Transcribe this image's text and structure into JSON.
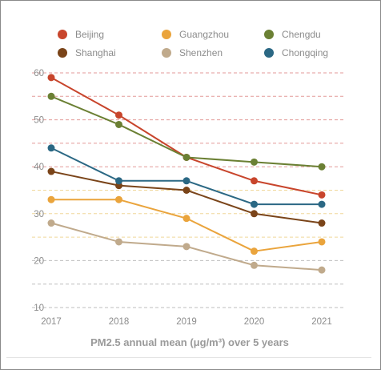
{
  "chart_data": {
    "type": "line",
    "title": "",
    "caption": "PM2.5 annual mean (μg/m³) over 5 years",
    "xlabel": "",
    "ylabel": "",
    "x": [
      "2017",
      "2018",
      "2019",
      "2020",
      "2021"
    ],
    "ylim": [
      10,
      60
    ],
    "yticks": [
      10,
      20,
      30,
      40,
      50,
      60
    ],
    "grid": "dashed horizontal lines every 5 units, coloured by band",
    "legend_position": "top",
    "series": [
      {
        "name": "Beijing",
        "color": "#c8452c",
        "values": [
          59,
          51,
          42,
          37,
          34
        ]
      },
      {
        "name": "Shanghai",
        "color": "#7a4419",
        "values": [
          39,
          36,
          35,
          30,
          28
        ]
      },
      {
        "name": "Guangzhou",
        "color": "#eaa43c",
        "values": [
          33,
          33,
          29,
          22,
          24
        ]
      },
      {
        "name": "Shenzhen",
        "color": "#c0aa8c",
        "values": [
          28,
          24,
          23,
          19,
          18
        ]
      },
      {
        "name": "Chengdu",
        "color": "#6b8034",
        "values": [
          55,
          49,
          42,
          41,
          40
        ]
      },
      {
        "name": "Chongqing",
        "color": "#2b6884",
        "values": [
          44,
          37,
          37,
          32,
          32
        ]
      }
    ]
  }
}
